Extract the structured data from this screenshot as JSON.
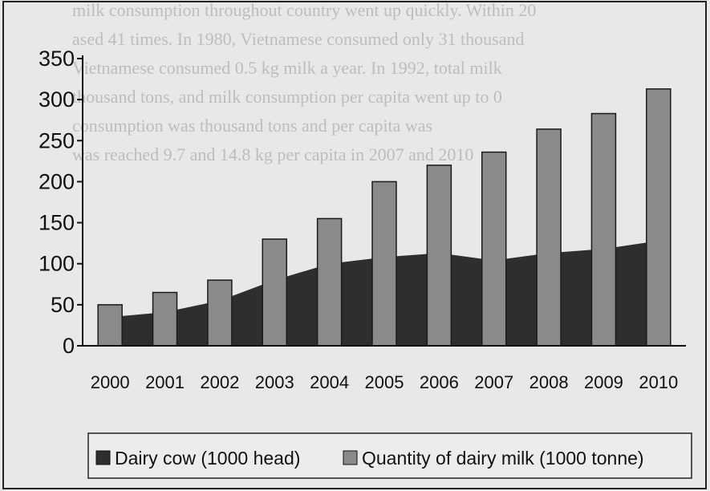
{
  "chart_data": {
    "type": "bar",
    "categories": [
      "2000",
      "2001",
      "2002",
      "2003",
      "2004",
      "2005",
      "2006",
      "2007",
      "2008",
      "2009",
      "2010"
    ],
    "series": [
      {
        "name": "Dairy cow (1000 head)",
        "chart_type": "area",
        "color": "#2e2e2e",
        "values": [
          35,
          41,
          55,
          80,
          100,
          108,
          113,
          104,
          113,
          118,
          128
        ]
      },
      {
        "name": "Quantity of dairy milk (1000 tonne)",
        "chart_type": "bar",
        "color": "#8a8a8a",
        "values": [
          50,
          65,
          80,
          130,
          155,
          200,
          220,
          236,
          264,
          283,
          313
        ]
      }
    ],
    "y_ticks": [
      "0",
      "50",
      "100",
      "150",
      "200",
      "250",
      "300",
      "350"
    ],
    "ylim": [
      0,
      350
    ],
    "legend_position": "bottom",
    "grid": false
  },
  "background_text": [
    "milk consumption throughout country went up quickly. Within 20",
    "ased 41 times. In 1980, Vietnamese consumed only 31 thousand",
    "Vietnamese consumed 0.5 kg milk a year. In 1992, total milk",
    "thousand tons, and milk consumption per capita went up to 0",
    "consumption was thousand tons and per capita was",
    "was reached 9.7 and 14.8 kg per capita in 2007 and 2010"
  ]
}
